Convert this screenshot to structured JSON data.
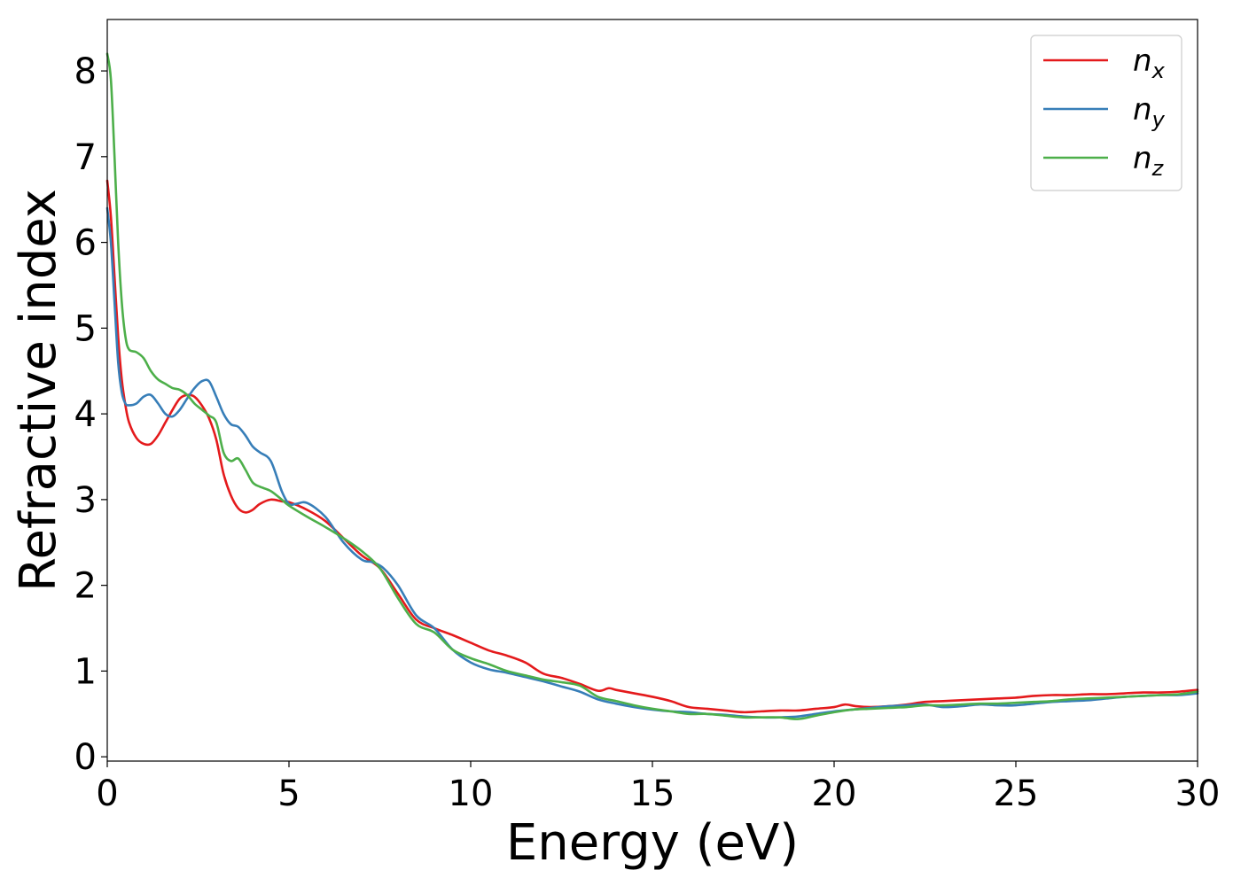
{
  "chart_data": {
    "type": "line",
    "title": "",
    "xlabel": "Energy (eV)",
    "ylabel": "Refractive index",
    "xlim": [
      0,
      30
    ],
    "ylim": [
      -0.05,
      8.6
    ],
    "xticks": [
      0,
      5,
      10,
      15,
      20,
      25,
      30
    ],
    "yticks": [
      0,
      1,
      2,
      3,
      4,
      5,
      6,
      7,
      8
    ],
    "grid": false,
    "legend_position": "top-right",
    "series": [
      {
        "name": "n",
        "subscript": "x",
        "color": "#e41a1c",
        "x": [
          0,
          0.1,
          0.2,
          0.3,
          0.4,
          0.5,
          0.6,
          0.8,
          1.0,
          1.2,
          1.4,
          1.6,
          1.8,
          2.0,
          2.2,
          2.4,
          2.6,
          2.8,
          3.0,
          3.2,
          3.4,
          3.6,
          3.8,
          4.0,
          4.2,
          4.5,
          4.8,
          5.0,
          5.5,
          6.0,
          6.5,
          7.0,
          7.5,
          8.0,
          8.5,
          9.0,
          9.5,
          10.0,
          10.5,
          11.0,
          11.5,
          12.0,
          12.5,
          13.0,
          13.5,
          13.8,
          14.0,
          14.5,
          15.0,
          15.5,
          16.0,
          16.5,
          17.0,
          17.5,
          18.0,
          18.5,
          19.0,
          19.5,
          20.0,
          20.3,
          20.6,
          21.0,
          21.5,
          22.0,
          22.5,
          23.0,
          23.5,
          24.0,
          24.5,
          25.0,
          25.5,
          26.0,
          26.5,
          27.0,
          27.5,
          28.0,
          28.5,
          29.0,
          29.5,
          30.0
        ],
        "y": [
          6.72,
          6.3,
          5.6,
          4.9,
          4.4,
          4.1,
          3.9,
          3.72,
          3.65,
          3.65,
          3.75,
          3.9,
          4.05,
          4.18,
          4.22,
          4.2,
          4.1,
          3.95,
          3.7,
          3.3,
          3.05,
          2.9,
          2.85,
          2.88,
          2.95,
          3.0,
          2.98,
          2.97,
          2.88,
          2.75,
          2.55,
          2.35,
          2.2,
          1.9,
          1.6,
          1.5,
          1.42,
          1.33,
          1.24,
          1.18,
          1.1,
          0.97,
          0.92,
          0.85,
          0.77,
          0.8,
          0.78,
          0.74,
          0.7,
          0.65,
          0.58,
          0.56,
          0.54,
          0.52,
          0.53,
          0.54,
          0.54,
          0.56,
          0.58,
          0.61,
          0.59,
          0.58,
          0.59,
          0.61,
          0.64,
          0.65,
          0.66,
          0.67,
          0.68,
          0.69,
          0.71,
          0.72,
          0.72,
          0.73,
          0.73,
          0.74,
          0.75,
          0.75,
          0.76,
          0.78
        ]
      },
      {
        "name": "n",
        "subscript": "y",
        "color": "#377eb8",
        "x": [
          0,
          0.1,
          0.2,
          0.3,
          0.4,
          0.5,
          0.6,
          0.8,
          1.0,
          1.2,
          1.4,
          1.6,
          1.8,
          2.0,
          2.2,
          2.4,
          2.6,
          2.8,
          3.0,
          3.2,
          3.4,
          3.6,
          3.8,
          4.0,
          4.2,
          4.5,
          4.8,
          5.0,
          5.2,
          5.5,
          6.0,
          6.5,
          7.0,
          7.3,
          7.6,
          8.0,
          8.5,
          9.0,
          9.5,
          10.0,
          10.5,
          11.0,
          11.5,
          12.0,
          12.5,
          13.0,
          13.5,
          14.0,
          14.5,
          15.0,
          15.5,
          16.0,
          16.5,
          17.0,
          17.5,
          18.0,
          18.5,
          19.0,
          19.5,
          20.0,
          20.5,
          21.0,
          21.5,
          22.0,
          22.5,
          23.0,
          23.5,
          24.0,
          24.5,
          25.0,
          25.5,
          26.0,
          26.5,
          27.0,
          27.5,
          28.0,
          28.5,
          29.0,
          29.5,
          30.0
        ],
        "y": [
          6.4,
          6.0,
          5.3,
          4.6,
          4.25,
          4.12,
          4.1,
          4.12,
          4.2,
          4.22,
          4.12,
          4.0,
          3.97,
          4.05,
          4.18,
          4.3,
          4.38,
          4.38,
          4.2,
          4.0,
          3.88,
          3.85,
          3.75,
          3.62,
          3.55,
          3.45,
          3.1,
          2.95,
          2.95,
          2.96,
          2.8,
          2.5,
          2.3,
          2.27,
          2.2,
          2.0,
          1.65,
          1.5,
          1.25,
          1.1,
          1.02,
          0.98,
          0.93,
          0.88,
          0.82,
          0.76,
          0.67,
          0.62,
          0.58,
          0.55,
          0.53,
          0.52,
          0.5,
          0.49,
          0.47,
          0.46,
          0.46,
          0.47,
          0.5,
          0.53,
          0.55,
          0.57,
          0.59,
          0.6,
          0.61,
          0.58,
          0.59,
          0.61,
          0.6,
          0.6,
          0.62,
          0.64,
          0.65,
          0.66,
          0.68,
          0.7,
          0.71,
          0.72,
          0.72,
          0.74
        ]
      },
      {
        "name": "n",
        "subscript": "z",
        "color": "#4daf4a",
        "x": [
          0,
          0.1,
          0.2,
          0.3,
          0.4,
          0.5,
          0.6,
          0.8,
          1.0,
          1.2,
          1.4,
          1.6,
          1.8,
          2.0,
          2.2,
          2.4,
          2.6,
          2.8,
          3.0,
          3.2,
          3.4,
          3.6,
          3.8,
          4.0,
          4.2,
          4.5,
          4.8,
          5.0,
          5.5,
          6.0,
          6.5,
          7.0,
          7.5,
          8.0,
          8.5,
          9.0,
          9.5,
          10.0,
          10.5,
          11.0,
          11.5,
          12.0,
          12.5,
          13.0,
          13.5,
          14.0,
          14.5,
          15.0,
          15.5,
          16.0,
          16.5,
          17.0,
          17.5,
          18.0,
          18.5,
          19.0,
          19.5,
          20.0,
          20.5,
          21.0,
          21.5,
          22.0,
          22.5,
          23.0,
          23.5,
          24.0,
          24.5,
          25.0,
          25.5,
          26.0,
          26.5,
          27.0,
          27.5,
          28.0,
          28.5,
          29.0,
          29.5,
          30.0
        ],
        "y": [
          8.2,
          7.9,
          7.0,
          6.0,
          5.3,
          4.9,
          4.75,
          4.72,
          4.65,
          4.5,
          4.4,
          4.35,
          4.3,
          4.28,
          4.22,
          4.12,
          4.05,
          3.98,
          3.9,
          3.55,
          3.45,
          3.48,
          3.35,
          3.2,
          3.15,
          3.1,
          3.0,
          2.93,
          2.8,
          2.68,
          2.55,
          2.4,
          2.2,
          1.85,
          1.55,
          1.45,
          1.25,
          1.15,
          1.08,
          1.0,
          0.95,
          0.9,
          0.87,
          0.83,
          0.7,
          0.65,
          0.6,
          0.56,
          0.53,
          0.5,
          0.5,
          0.48,
          0.46,
          0.46,
          0.46,
          0.44,
          0.48,
          0.52,
          0.55,
          0.56,
          0.57,
          0.58,
          0.6,
          0.6,
          0.61,
          0.62,
          0.62,
          0.63,
          0.64,
          0.65,
          0.67,
          0.68,
          0.69,
          0.7,
          0.71,
          0.72,
          0.73,
          0.76
        ]
      }
    ]
  }
}
